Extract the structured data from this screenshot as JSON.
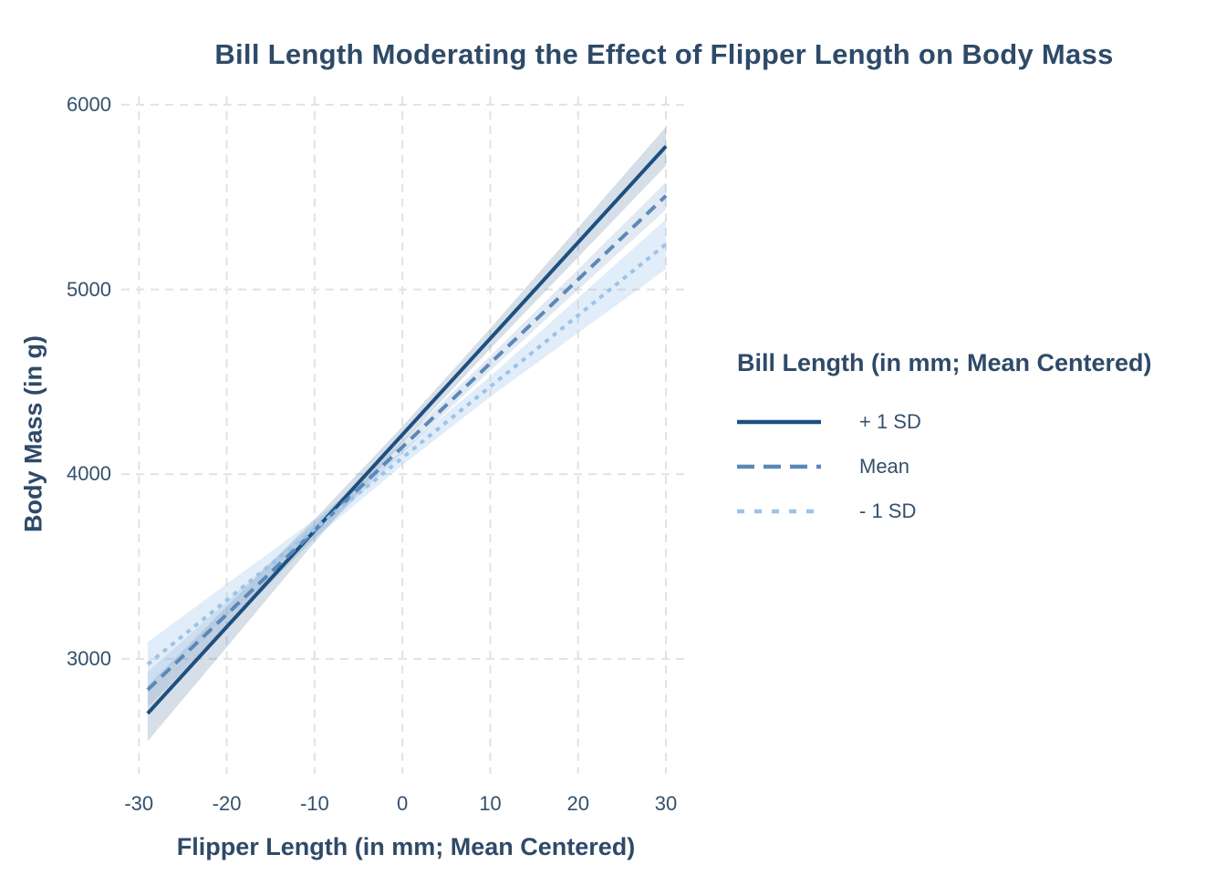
{
  "chart_data": {
    "type": "line",
    "title": "Bill Length Moderating the Effect of Flipper Length on Body Mass",
    "xlabel": "Flipper Length (in mm; Mean Centered)",
    "ylabel": "Body Mass (in g)",
    "x_ticks": [
      -30,
      -20,
      -10,
      0,
      10,
      20,
      30
    ],
    "y_ticks": [
      3000,
      4000,
      5000,
      6000
    ],
    "xlim": [
      -32,
      32.8
    ],
    "ylim": [
      2378,
      6044
    ],
    "grid": {
      "style": "dashed",
      "color": "#e2e2e2"
    },
    "text_color": "#2e4a68",
    "tick_color": "#35506b",
    "legend": {
      "title": "Bill Length (in mm; Mean Centered)",
      "position": "right"
    },
    "series": [
      {
        "name": "+ 1 SD",
        "line_style": "solid",
        "color": "#1d5080",
        "x": [
          -29,
          30
        ],
        "y": [
          2705,
          5775
        ],
        "ci": {
          "x": [
            -29,
            -20,
            -10,
            0,
            10,
            20,
            30
          ],
          "half_width": [
            150,
            110,
            62,
            45,
            55,
            80,
            105
          ],
          "opacity": 0.18
        }
      },
      {
        "name": "Mean",
        "line_style": "dashed",
        "color": "#5b88b8",
        "x": [
          -29,
          30
        ],
        "y": [
          2833,
          5507
        ],
        "ci": {
          "x": [
            -29,
            -20,
            -10,
            0,
            10,
            20,
            30
          ],
          "half_width": [
            95,
            70,
            42,
            33,
            40,
            55,
            75
          ],
          "opacity": 0.18
        }
      },
      {
        "name": "- 1 SD",
        "line_style": "dotted",
        "color": "#9cc3e8",
        "x": [
          -29,
          30
        ],
        "y": [
          2971,
          5245
        ],
        "ci": {
          "x": [
            -29,
            -20,
            -10,
            0,
            10,
            20,
            30
          ],
          "half_width": [
            120,
            88,
            52,
            40,
            55,
            95,
            135
          ],
          "opacity": 0.3
        }
      }
    ]
  }
}
